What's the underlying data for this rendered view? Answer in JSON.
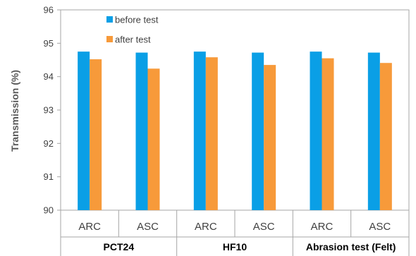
{
  "chart_data": {
    "type": "bar",
    "title": "",
    "xlabel": "",
    "ylabel": "Transmission (%)",
    "ylim": [
      90,
      96
    ],
    "yticks": [
      90,
      91,
      92,
      93,
      94,
      95,
      96
    ],
    "grid": false,
    "legend_position": "top-right",
    "groups": [
      {
        "label": "PCT24",
        "categories": [
          "ARC",
          "ASC"
        ]
      },
      {
        "label": "HF10",
        "categories": [
          "ARC",
          "ASC"
        ]
      },
      {
        "label": "Abrasion test (Felt)",
        "categories": [
          "ARC",
          "ASC"
        ]
      }
    ],
    "categories": [
      "ARC",
      "ASC",
      "ARC",
      "ASC",
      "ARC",
      "ASC"
    ],
    "series": [
      {
        "name": "before test",
        "color": "#0a9fe6",
        "values": [
          94.75,
          94.72,
          94.75,
          94.72,
          94.75,
          94.72
        ]
      },
      {
        "name": "after test",
        "color": "#f79a3a",
        "values": [
          94.52,
          94.24,
          94.58,
          94.35,
          94.55,
          94.41
        ]
      }
    ]
  }
}
